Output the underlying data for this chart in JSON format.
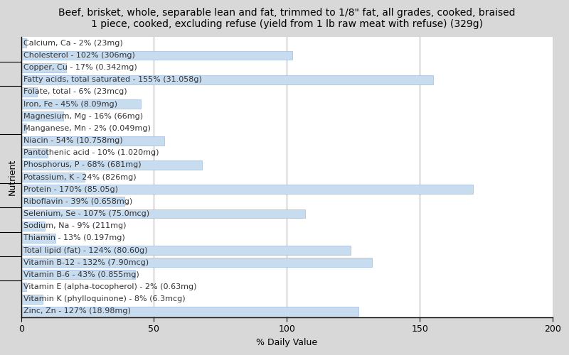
{
  "title": "Beef, brisket, whole, separable lean and fat, trimmed to 1/8\" fat, all grades, cooked, braised\n1 piece, cooked, excluding refuse (yield from 1 lb raw meat with refuse) (329g)",
  "xlabel": "% Daily Value",
  "ylabel": "Nutrient",
  "xlim": [
    0,
    200
  ],
  "xticks": [
    0,
    50,
    100,
    150,
    200
  ],
  "fig_bg_color": "#d8d8d8",
  "plot_bg_color": "#ffffff",
  "bar_color": "#c8dcf0",
  "bar_edge_color": "#a0bce0",
  "grid_color": "#b0b0b0",
  "nutrients": [
    {
      "label": "Calcium, Ca - 2% (23mg)",
      "value": 2
    },
    {
      "label": "Cholesterol - 102% (306mg)",
      "value": 102
    },
    {
      "label": "Copper, Cu - 17% (0.342mg)",
      "value": 17
    },
    {
      "label": "Fatty acids, total saturated - 155% (31.058g)",
      "value": 155
    },
    {
      "label": "Folate, total - 6% (23mcg)",
      "value": 6
    },
    {
      "label": "Iron, Fe - 45% (8.09mg)",
      "value": 45
    },
    {
      "label": "Magnesium, Mg - 16% (66mg)",
      "value": 16
    },
    {
      "label": "Manganese, Mn - 2% (0.049mg)",
      "value": 2
    },
    {
      "label": "Niacin - 54% (10.758mg)",
      "value": 54
    },
    {
      "label": "Pantothenic acid - 10% (1.020mg)",
      "value": 10
    },
    {
      "label": "Phosphorus, P - 68% (681mg)",
      "value": 68
    },
    {
      "label": "Potassium, K - 24% (826mg)",
      "value": 24
    },
    {
      "label": "Protein - 170% (85.05g)",
      "value": 170
    },
    {
      "label": "Riboflavin - 39% (0.658mg)",
      "value": 39
    },
    {
      "label": "Selenium, Se - 107% (75.0mcg)",
      "value": 107
    },
    {
      "label": "Sodium, Na - 9% (211mg)",
      "value": 9
    },
    {
      "label": "Thiamin - 13% (0.197mg)",
      "value": 13
    },
    {
      "label": "Total lipid (fat) - 124% (80.60g)",
      "value": 124
    },
    {
      "label": "Vitamin B-12 - 132% (7.90mcg)",
      "value": 132
    },
    {
      "label": "Vitamin B-6 - 43% (0.855mg)",
      "value": 43
    },
    {
      "label": "Vitamin E (alpha-tocopherol) - 2% (0.63mg)",
      "value": 2
    },
    {
      "label": "Vitamin K (phylloquinone) - 8% (6.3mcg)",
      "value": 8
    },
    {
      "label": "Zinc, Zn - 127% (18.98mg)",
      "value": 127
    }
  ],
  "group_separators": [
    1.5,
    3.5,
    7.5,
    11.5,
    13.5,
    15.5,
    17.5,
    19.5
  ],
  "title_fontsize": 10,
  "axis_label_fontsize": 9,
  "tick_fontsize": 9,
  "bar_label_fontsize": 8,
  "bar_height": 0.75
}
